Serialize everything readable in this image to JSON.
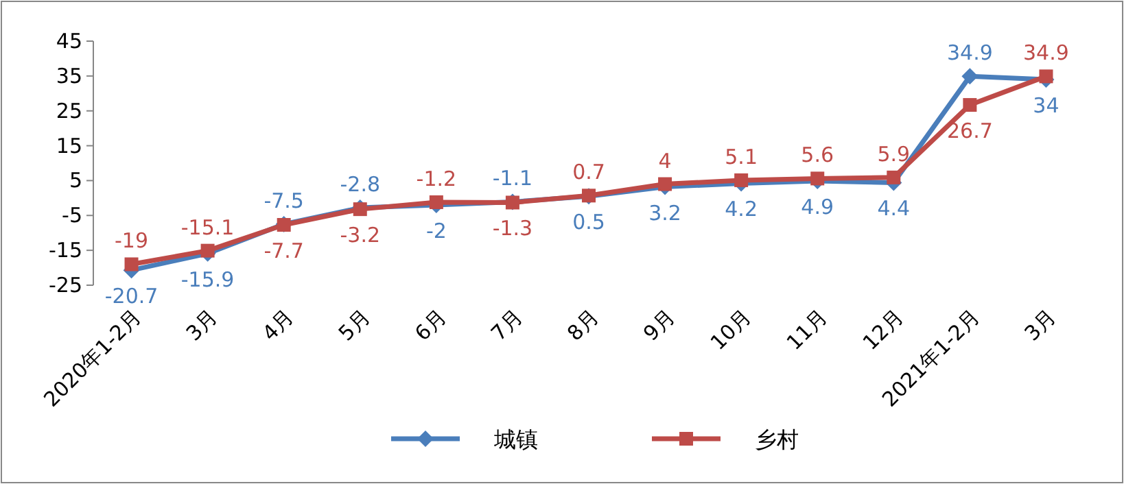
{
  "chart_data": {
    "type": "line",
    "categories": [
      "2020年1-2月",
      "3月",
      "4月",
      "5月",
      "6月",
      "7月",
      "8月",
      "9月",
      "10月",
      "11月",
      "12月",
      "2021年1-2月",
      "3月"
    ],
    "series": [
      {
        "name": "城镇",
        "color": "#4a7ebb",
        "marker": "diamond",
        "values": [
          -20.7,
          -15.9,
          -7.5,
          -2.8,
          -2,
          -1.1,
          0.5,
          3.2,
          4.2,
          4.9,
          4.4,
          34.9,
          34
        ]
      },
      {
        "name": "乡村",
        "color": "#be4b48",
        "marker": "square",
        "values": [
          -19,
          -15.1,
          -7.7,
          -3.2,
          -1.2,
          -1.3,
          0.7,
          4,
          5.1,
          5.6,
          5.9,
          26.7,
          34.9
        ]
      }
    ],
    "ylim": [
      -25,
      45
    ],
    "yticks": [
      -25,
      -15,
      -5,
      5,
      15,
      25,
      35,
      45
    ],
    "data_labels": true,
    "legend": "bottom",
    "grid": false
  }
}
